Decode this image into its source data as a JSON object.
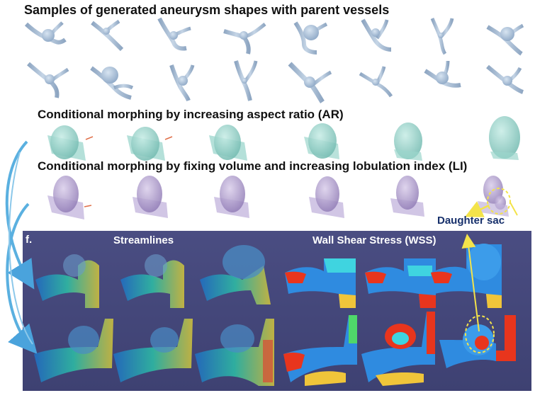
{
  "headings": {
    "samples": "Samples of generated aneurysm shapes with parent vessels",
    "aspect_ratio": "Conditional morphing by increasing aspect ratio (AR)",
    "lobulation": "Conditional morphing by fixing volume and increasing lobulation index (LI)"
  },
  "panel": {
    "label": "f.",
    "streamlines_title": "Streamlines",
    "wss_title": "Wall Shear Stress (WSS)",
    "annotation": "Daughter sac"
  },
  "colors": {
    "vessel_gray_blue": "#a9bfd6",
    "ar_teal": "#8fcfc5",
    "li_purple": "#b3a2cf",
    "panel_bg": "#464a7d",
    "annotation_yellow": "#f3e34a",
    "arrow_blue": "#5ab0e0"
  }
}
